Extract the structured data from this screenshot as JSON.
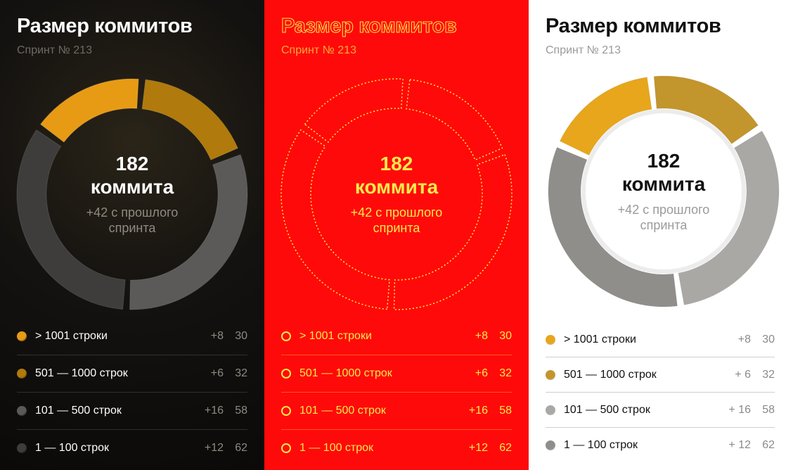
{
  "title": "Размер коммитов",
  "subtitle": "Спринт № 213",
  "center": {
    "count": "182",
    "unit": "коммита",
    "delta": "+42 с прошлого спринта"
  },
  "chart_data": {
    "type": "donut",
    "total": 182,
    "series": [
      {
        "label": "> 1001 строки",
        "change": "+8",
        "value": 30
      },
      {
        "label": "501 — 1000 строк",
        "change": "+6",
        "value": 32
      },
      {
        "label": "101 — 500 строк",
        "change": "+16",
        "value": 58
      },
      {
        "label": "1 — 100 строк",
        "change": "+12",
        "value": 62
      }
    ]
  },
  "legend_light": [
    {
      "change": "+8"
    },
    {
      "change": "+ 6"
    },
    {
      "change": "+ 16"
    },
    {
      "change": "+ 12"
    }
  ],
  "colors": {
    "dark": [
      "#e79b14",
      "#b07a0c",
      "#5b5a58",
      "#3e3d3b"
    ],
    "light": [
      "#e7a61c",
      "#c2952d",
      "#a9a8a4",
      "#8f8e8a"
    ],
    "red_fg": "#ffe94d",
    "red_bg": "#ff0a0a"
  }
}
